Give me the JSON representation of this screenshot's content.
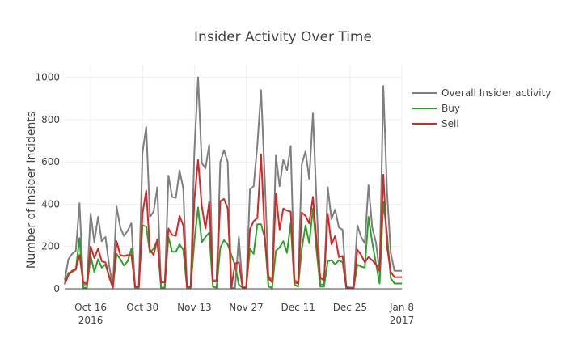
{
  "chart_data": {
    "type": "line",
    "title": "Insider Activity Over Time",
    "xlabel": "",
    "ylabel": "Number of Insider Incidents",
    "x_start": "2016-10-09",
    "x_end": "2017-01-08",
    "ylim": [
      0,
      1060
    ],
    "grid": true,
    "legend_position": "right",
    "y_ticks": [
      0,
      200,
      400,
      600,
      800,
      1000
    ],
    "x_ticks": [
      {
        "date": "2016-10-16",
        "label": "Oct 16",
        "sublabel": "2016"
      },
      {
        "date": "2016-10-30",
        "label": "Oct 30",
        "sublabel": ""
      },
      {
        "date": "2016-11-13",
        "label": "Nov 13",
        "sublabel": ""
      },
      {
        "date": "2016-11-27",
        "label": "Nov 27",
        "sublabel": ""
      },
      {
        "date": "2016-12-11",
        "label": "Dec 11",
        "sublabel": ""
      },
      {
        "date": "2016-12-25",
        "label": "Dec 25",
        "sublabel": ""
      },
      {
        "date": "2017-01-08",
        "label": "Jan 8",
        "sublabel": "2017"
      }
    ],
    "series": [
      {
        "name": "Overall Insider activity",
        "color": "#7f7f7f",
        "values": [
          40,
          140,
          165,
          180,
          405,
          20,
          20,
          355,
          220,
          340,
          225,
          245,
          110,
          10,
          390,
          290,
          250,
          275,
          310,
          5,
          5,
          645,
          765,
          340,
          365,
          480,
          5,
          5,
          535,
          435,
          430,
          560,
          475,
          5,
          5,
          650,
          1000,
          595,
          570,
          680,
          40,
          40,
          600,
          655,
          600,
          5,
          5,
          245,
          10,
          5,
          470,
          485,
          680,
          940,
          520,
          60,
          40,
          630,
          485,
          610,
          560,
          675,
          45,
          25,
          590,
          650,
          520,
          830,
          400,
          20,
          20,
          480,
          330,
          375,
          290,
          280,
          10,
          5,
          5,
          300,
          245,
          215,
          490,
          290,
          220,
          75,
          960,
          460,
          170,
          85,
          85,
          85
        ]
      },
      {
        "name": "Buy",
        "color": "#2ca02c",
        "values": [
          25,
          75,
          80,
          90,
          240,
          5,
          5,
          155,
          80,
          140,
          100,
          115,
          60,
          5,
          165,
          140,
          110,
          130,
          190,
          5,
          5,
          300,
          295,
          170,
          190,
          230,
          5,
          5,
          245,
          175,
          175,
          210,
          185,
          5,
          5,
          225,
          385,
          220,
          245,
          265,
          10,
          5,
          195,
          230,
          210,
          160,
          110,
          20,
          5,
          5,
          190,
          165,
          305,
          305,
          240,
          10,
          5,
          180,
          195,
          225,
          170,
          310,
          20,
          10,
          190,
          300,
          215,
          380,
          175,
          10,
          10,
          130,
          135,
          115,
          135,
          125,
          5,
          5,
          5,
          115,
          105,
          100,
          340,
          220,
          120,
          25,
          410,
          260,
          50,
          25,
          25,
          25
        ]
      },
      {
        "name": "Sell",
        "color": "#d62728",
        "values": [
          20,
          65,
          85,
          95,
          160,
          30,
          25,
          200,
          145,
          190,
          130,
          125,
          55,
          5,
          225,
          160,
          155,
          160,
          160,
          10,
          10,
          355,
          465,
          185,
          160,
          235,
          30,
          30,
          285,
          255,
          250,
          345,
          300,
          10,
          10,
          420,
          610,
          390,
          285,
          410,
          35,
          35,
          415,
          425,
          380,
          5,
          120,
          125,
          5,
          5,
          280,
          320,
          335,
          635,
          250,
          50,
          30,
          450,
          280,
          380,
          370,
          365,
          30,
          25,
          360,
          345,
          310,
          435,
          220,
          50,
          40,
          355,
          210,
          250,
          150,
          155,
          5,
          5,
          5,
          185,
          160,
          125,
          150,
          135,
          115,
          85,
          540,
          200,
          80,
          55,
          55,
          55
        ]
      }
    ]
  }
}
